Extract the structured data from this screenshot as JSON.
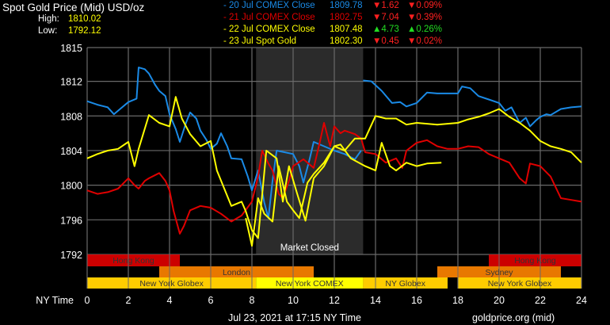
{
  "header": {
    "title": "Spot Gold Price (Mid) USD/oz",
    "high_label": "High:",
    "high_value": "1810.02",
    "low_label": "Low:",
    "low_value": "1792.12"
  },
  "legend": [
    {
      "label": "- 20 Jul COMEX Close",
      "value": "1809.78",
      "change": "▼1.62",
      "pct": "▼0.09%",
      "color": "#1a8ae6",
      "change_color": "#ff2020"
    },
    {
      "label": "- 21 Jul COMEX Close",
      "value": "1802.75",
      "change": "▼7.04",
      "pct": "▼0.39%",
      "color": "#e00000",
      "change_color": "#ff2020"
    },
    {
      "label": "- 22 Jul COMEX Close",
      "value": "1807.48",
      "change": "▲4.73",
      "pct": "▲0.26%",
      "color": "#ffff00",
      "change_color": "#22dd22"
    },
    {
      "label": "- 23 Jul Spot Gold",
      "value": "1802.30",
      "change": "▼0.45",
      "pct": "▼0.02%",
      "color": "#ffff00",
      "change_color": "#ff2020"
    }
  ],
  "footer": {
    "timestamp": "Jul 23, 2021 at 17:15 NY Time",
    "source": "goldprice.org (mid)"
  },
  "chart_data": {
    "type": "line",
    "xlabel": "NY Time",
    "xlim": [
      0,
      24
    ],
    "x_ticks": [
      0,
      2,
      4,
      6,
      8,
      10,
      12,
      14,
      16,
      18,
      20,
      22,
      24
    ],
    "ylim": [
      1792,
      1815.9
    ],
    "y_ticks": [
      1792,
      1796,
      1800,
      1804,
      1808,
      1812
    ],
    "y_top_label": "1815",
    "grid": true,
    "shaded_region": {
      "label": "Market Closed",
      "from": 8.2,
      "to": 13.4,
      "color": "#2b2b2b"
    },
    "series": [
      {
        "name": "20 Jul COMEX Close",
        "color": "#1a8ae6",
        "points": [
          [
            0,
            1809.7
          ],
          [
            0.5,
            1809.3
          ],
          [
            1,
            1809.0
          ],
          [
            1.3,
            1808.2
          ],
          [
            1.6,
            1808.8
          ],
          [
            2,
            1809.6
          ],
          [
            2.4,
            1810.0
          ],
          [
            2.5,
            1813.6
          ],
          [
            2.8,
            1813.4
          ],
          [
            3,
            1812.9
          ],
          [
            3.3,
            1811.6
          ],
          [
            3.5,
            1810.9
          ],
          [
            3.8,
            1810.3
          ],
          [
            4,
            1808.2
          ],
          [
            4.3,
            1806.5
          ],
          [
            4.5,
            1805.0
          ],
          [
            4.8,
            1807.2
          ],
          [
            5,
            1808.4
          ],
          [
            5.3,
            1807.7
          ],
          [
            5.5,
            1806.3
          ],
          [
            5.8,
            1805.2
          ],
          [
            6,
            1804.2
          ],
          [
            6.3,
            1804.8
          ],
          [
            6.5,
            1806.0
          ],
          [
            6.8,
            1804.5
          ],
          [
            7,
            1803.1
          ],
          [
            7.5,
            1803.0
          ],
          [
            7.8,
            1801.0
          ],
          [
            8,
            1799.4
          ],
          [
            8.3,
            1801.7
          ],
          [
            8.6,
            1798.0
          ],
          [
            8.8,
            1796.2
          ],
          [
            9.0,
            1800.5
          ],
          [
            9.2,
            1804.0
          ],
          [
            9.6,
            1803.8
          ],
          [
            10,
            1803.6
          ],
          [
            10.3,
            1802.2
          ],
          [
            10.5,
            1800.3
          ],
          [
            10.8,
            1803.0
          ],
          [
            11,
            1805.0
          ],
          [
            11.5,
            1804.5
          ],
          [
            12,
            1804.0
          ],
          [
            12.5,
            1803.6
          ],
          [
            13,
            1803.0
          ],
          [
            13.3,
            1804.0
          ],
          [
            13.35,
            null
          ],
          [
            13.4,
            1812.1
          ],
          [
            13.8,
            1812.0
          ],
          [
            14.3,
            1810.9
          ],
          [
            14.8,
            1809.5
          ],
          [
            15.2,
            1809.6
          ],
          [
            15.5,
            1809.1
          ],
          [
            16,
            1809.5
          ],
          [
            16.5,
            1810.7
          ],
          [
            17,
            1810.6
          ],
          [
            18,
            1810.6
          ],
          [
            18.2,
            1811.4
          ],
          [
            18.6,
            1811.2
          ],
          [
            19,
            1810.3
          ],
          [
            19.5,
            1809.9
          ],
          [
            20,
            1809.5
          ],
          [
            20.3,
            1808.6
          ],
          [
            20.6,
            1809.0
          ],
          [
            21,
            1807.2
          ],
          [
            21.3,
            1807.8
          ],
          [
            21.5,
            1806.8
          ],
          [
            21.8,
            1807.5
          ],
          [
            22,
            1807.9
          ],
          [
            22.3,
            1808.2
          ],
          [
            22.5,
            1808.1
          ],
          [
            23,
            1808.8
          ],
          [
            23.5,
            1809.0
          ],
          [
            24,
            1809.1
          ]
        ]
      },
      {
        "name": "21 Jul COMEX Close",
        "color": "#e00000",
        "points": [
          [
            0,
            1799.4
          ],
          [
            0.5,
            1799.0
          ],
          [
            1,
            1799.2
          ],
          [
            1.5,
            1799.6
          ],
          [
            2,
            1800.8
          ],
          [
            2.3,
            1800.0
          ],
          [
            2.5,
            1799.6
          ],
          [
            2.8,
            1800.5
          ],
          [
            3,
            1800.8
          ],
          [
            3.5,
            1801.4
          ],
          [
            3.8,
            1800.5
          ],
          [
            4,
            1799.4
          ],
          [
            4.2,
            1797.0
          ],
          [
            4.5,
            1794.4
          ],
          [
            4.7,
            1795.3
          ],
          [
            5,
            1797.1
          ],
          [
            5.5,
            1797.6
          ],
          [
            6,
            1797.4
          ],
          [
            6.5,
            1796.7
          ],
          [
            7,
            1795.8
          ],
          [
            7.5,
            1796.5
          ],
          [
            8,
            1798.1
          ],
          [
            8.3,
            1801.0
          ],
          [
            8.5,
            1804.0
          ],
          [
            8.8,
            1802.5
          ],
          [
            9,
            1801.7
          ],
          [
            9.3,
            1799.0
          ],
          [
            9.5,
            1798.5
          ],
          [
            9.8,
            1800.5
          ],
          [
            10,
            1802.2
          ],
          [
            10.5,
            1803.0
          ],
          [
            11,
            1802.0
          ],
          [
            11.3,
            1805.0
          ],
          [
            11.5,
            1807.2
          ],
          [
            11.8,
            1804.5
          ],
          [
            12,
            1806.8
          ],
          [
            12.3,
            1806.0
          ],
          [
            12.5,
            1806.3
          ],
          [
            13,
            1805.9
          ],
          [
            13.3,
            1805.4
          ],
          [
            13.5,
            1803.8
          ],
          [
            14,
            1803.6
          ],
          [
            14.5,
            1802.6
          ],
          [
            15,
            1803.1
          ],
          [
            15.3,
            1802.0
          ],
          [
            15.5,
            1804.0
          ],
          [
            16,
            1804.9
          ],
          [
            16.5,
            1805.2
          ],
          [
            17,
            1804.5
          ],
          [
            17.5,
            1804.2
          ],
          [
            18,
            1804.2
          ],
          [
            18.5,
            1804.5
          ],
          [
            19,
            1804.4
          ],
          [
            19.5,
            1803.6
          ],
          [
            20,
            1803.1
          ],
          [
            20.5,
            1802.6
          ],
          [
            21,
            1800.8
          ],
          [
            21.3,
            1800.2
          ],
          [
            21.5,
            1802.5
          ],
          [
            22,
            1802.2
          ],
          [
            22.5,
            1801.0
          ],
          [
            23,
            1798.5
          ],
          [
            23.5,
            1798.3
          ],
          [
            24,
            1798.1
          ]
        ]
      },
      {
        "name": "22 Jul COMEX Close",
        "color": "#ffff00",
        "points": [
          [
            7.7,
            1796.2
          ],
          [
            8,
            1793.0
          ],
          [
            8.3,
            1798.5
          ],
          [
            8.6,
            1796.7
          ],
          [
            9,
            1795.8
          ],
          [
            9.3,
            1802.2
          ],
          [
            9.7,
            1798.1
          ],
          [
            10,
            1797.1
          ],
          [
            10.3,
            1796.2
          ],
          [
            10.7,
            1800.3
          ],
          [
            11,
            1801.3
          ],
          [
            11.5,
            1802.6
          ],
          [
            12,
            1804.5
          ],
          [
            12.5,
            1804.0
          ],
          [
            13,
            1805.4
          ],
          [
            13.5,
            1805.4
          ],
          [
            14,
            1808.0
          ],
          [
            14.5,
            1807.7
          ],
          [
            15,
            1807.7
          ],
          [
            15.5,
            1807.0
          ],
          [
            16,
            1807.2
          ],
          [
            17,
            1807.0
          ],
          [
            18,
            1807.2
          ],
          [
            18.5,
            1807.6
          ],
          [
            19,
            1807.9
          ],
          [
            19.5,
            1808.3
          ],
          [
            20,
            1808.8
          ],
          [
            20.5,
            1807.9
          ],
          [
            21,
            1807.2
          ],
          [
            21.5,
            1806.3
          ],
          [
            22,
            1805.1
          ],
          [
            22.5,
            1804.5
          ],
          [
            23,
            1804.2
          ],
          [
            23.5,
            1803.8
          ],
          [
            24,
            1802.6
          ]
        ]
      },
      {
        "name": "23 Jul Spot Gold",
        "color": "#ffff00",
        "points": [
          [
            0,
            1803.1
          ],
          [
            0.5,
            1803.6
          ],
          [
            1,
            1804.0
          ],
          [
            1.5,
            1804.2
          ],
          [
            2,
            1805.0
          ],
          [
            2.3,
            1802.2
          ],
          [
            2.5,
            1804.2
          ],
          [
            3,
            1808.1
          ],
          [
            3.5,
            1807.2
          ],
          [
            4,
            1806.8
          ],
          [
            4.3,
            1810.2
          ],
          [
            4.6,
            1807.7
          ],
          [
            5,
            1805.9
          ],
          [
            5.5,
            1804.5
          ],
          [
            6,
            1805.1
          ],
          [
            6.3,
            1801.7
          ],
          [
            7,
            1797.6
          ],
          [
            7.5,
            1798.1
          ],
          [
            7.7,
            1797.0
          ],
          [
            8,
            1794.8
          ],
          [
            8.3,
            1793.9
          ],
          [
            8.7,
            1804.0
          ],
          [
            9.2,
            1803.1
          ],
          [
            9.5,
            1798.1
          ],
          [
            9.8,
            1802.2
          ],
          [
            10.2,
            1799.0
          ],
          [
            10.6,
            1795.9
          ],
          [
            11,
            1800.8
          ],
          [
            11.5,
            1802.2
          ],
          [
            12,
            1804.5
          ],
          [
            12.3,
            1804.7
          ],
          [
            12.8,
            1803.1
          ],
          [
            13.5,
            1802.2
          ],
          [
            14,
            1801.7
          ],
          [
            14.3,
            1804.9
          ],
          [
            14.7,
            1802.2
          ],
          [
            15,
            1801.7
          ],
          [
            15.5,
            1802.6
          ],
          [
            16,
            1802.2
          ],
          [
            16.5,
            1802.5
          ],
          [
            17.2,
            1802.6
          ]
        ]
      }
    ],
    "sessions": [
      {
        "row": 0,
        "label": "Hong Kong",
        "from": 0,
        "to": 4.5,
        "color": "#cc0000"
      },
      {
        "row": 0,
        "label": "Hong Kong",
        "from": 19.5,
        "to": 24,
        "color": "#cc0000"
      },
      {
        "row": 1,
        "label": "London",
        "from": 3.5,
        "to": 11,
        "color": "#e87800"
      },
      {
        "row": 1,
        "label": "Sydney",
        "from": 17,
        "to": 23,
        "color": "#e87800"
      },
      {
        "row": 2,
        "label": "New York Globex",
        "from": 0,
        "to": 8.2,
        "color": "#ffcc00"
      },
      {
        "row": 2,
        "label": "New York COMEX",
        "from": 8.2,
        "to": 13.4,
        "color": "#ffff00"
      },
      {
        "row": 2,
        "label": "NY Globex",
        "from": 13.4,
        "to": 17.5,
        "color": "#ffcc00"
      },
      {
        "row": 2,
        "label": "New York Globex",
        "from": 18,
        "to": 24,
        "color": "#ffcc00"
      }
    ]
  }
}
